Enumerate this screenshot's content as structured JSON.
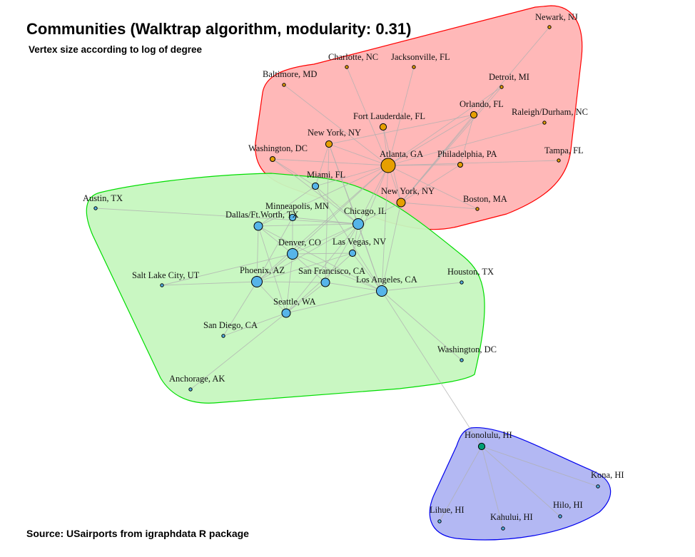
{
  "title": "Communities (Walktrap algorithm, modularity: 0.31)",
  "subtitle": "Vertex size according to log of degree",
  "source": "Source: USairports from igraphdata R package",
  "colors": {
    "community_red_fill": "#ffb8b8",
    "community_red_stroke": "#ff0000",
    "community_green_fill": "#c6f7bf",
    "community_green_stroke": "#00dd00",
    "community_blue_fill": "#b3b8f3",
    "community_blue_stroke": "#0000ee",
    "vertex_orange": "#e69f00",
    "vertex_blue": "#56b4e9",
    "vertex_teal": "#009e73",
    "edge": "#b0b0b0"
  },
  "communities": [
    {
      "name": "red",
      "members": [
        "ATL",
        "NYC2",
        "DCA",
        "BWI",
        "CLT",
        "JAX",
        "EWR",
        "DTW",
        "MCO",
        "RDU",
        "FLL",
        "PHL",
        "TPA",
        "BOS"
      ]
    },
    {
      "name": "green",
      "members": [
        "MIA",
        "AUS",
        "MSP",
        "DFW",
        "ORD",
        "DEN",
        "LAS",
        "SLC",
        "PHX",
        "SFO",
        "LAX",
        "IAH",
        "SEA",
        "SAN",
        "IAD",
        "ANC"
      ]
    },
    {
      "name": "blue",
      "members": [
        "HNL",
        "KOA",
        "LIH",
        "OGG",
        "ITO"
      ]
    }
  ],
  "vertices": [
    {
      "id": "ATL",
      "label": "Atlanta, GA",
      "degree_rank": 5,
      "color": "orange"
    },
    {
      "id": "NYC2",
      "label": "New York, NY",
      "degree_rank": 3,
      "color": "orange"
    },
    {
      "id": "NYC1",
      "label": "New York, NY",
      "degree_rank": 2,
      "color": "orange"
    },
    {
      "id": "DCA",
      "label": "Washington, DC",
      "degree_rank": 1,
      "color": "orange"
    },
    {
      "id": "BWI",
      "label": "Baltimore, MD",
      "degree_rank": 0,
      "color": "orange"
    },
    {
      "id": "CLT",
      "label": "Charlotte, NC",
      "degree_rank": 0,
      "color": "orange"
    },
    {
      "id": "JAX",
      "label": "Jacksonville, FL",
      "degree_rank": 0,
      "color": "orange"
    },
    {
      "id": "EWR",
      "label": "Newark, NJ",
      "degree_rank": 0,
      "color": "orange"
    },
    {
      "id": "DTW",
      "label": "Detroit, MI",
      "degree_rank": 0,
      "color": "orange"
    },
    {
      "id": "MCO",
      "label": "Orlando, FL",
      "degree_rank": 2,
      "color": "orange"
    },
    {
      "id": "RDU",
      "label": "Raleigh/Durham, NC",
      "degree_rank": 0,
      "color": "orange"
    },
    {
      "id": "FLL",
      "label": "Fort Lauderdale, FL",
      "degree_rank": 2,
      "color": "orange"
    },
    {
      "id": "PHL",
      "label": "Philadelphia, PA",
      "degree_rank": 1,
      "color": "orange"
    },
    {
      "id": "TPA",
      "label": "Tampa, FL",
      "degree_rank": 0,
      "color": "orange"
    },
    {
      "id": "BOS",
      "label": "Boston, MA",
      "degree_rank": 0,
      "color": "orange"
    },
    {
      "id": "MIA",
      "label": "Miami, FL",
      "degree_rank": 2,
      "color": "blue"
    },
    {
      "id": "AUS",
      "label": "Austin, TX",
      "degree_rank": 0,
      "color": "blue"
    },
    {
      "id": "MSP",
      "label": "Minneapolis, MN",
      "degree_rank": 2,
      "color": "blue"
    },
    {
      "id": "DFW",
      "label": "Dallas/Ft.Worth, TX",
      "degree_rank": 3,
      "color": "blue"
    },
    {
      "id": "ORD",
      "label": "Chicago, IL",
      "degree_rank": 4,
      "color": "blue"
    },
    {
      "id": "DEN",
      "label": "Denver, CO",
      "degree_rank": 4,
      "color": "blue"
    },
    {
      "id": "LAS",
      "label": "Las Vegas, NV",
      "degree_rank": 2,
      "color": "blue"
    },
    {
      "id": "SLC",
      "label": "Salt Lake City, UT",
      "degree_rank": 0,
      "color": "blue"
    },
    {
      "id": "PHX",
      "label": "Phoenix, AZ",
      "degree_rank": 4,
      "color": "blue"
    },
    {
      "id": "SFO",
      "label": "San Francisco, CA",
      "degree_rank": 3,
      "color": "blue"
    },
    {
      "id": "LAX",
      "label": "Los Angeles, CA",
      "degree_rank": 4,
      "color": "blue"
    },
    {
      "id": "IAH",
      "label": "Houston, TX",
      "degree_rank": 0,
      "color": "blue"
    },
    {
      "id": "SEA",
      "label": "Seattle, WA",
      "degree_rank": 3,
      "color": "blue"
    },
    {
      "id": "SAN",
      "label": "San Diego, CA",
      "degree_rank": 0,
      "color": "blue"
    },
    {
      "id": "IAD",
      "label": "Washington, DC",
      "degree_rank": 0,
      "color": "blue"
    },
    {
      "id": "ANC",
      "label": "Anchorage, AK",
      "degree_rank": 0,
      "color": "blue"
    },
    {
      "id": "HNL",
      "label": "Honolulu, HI",
      "degree_rank": 2,
      "color": "teal"
    },
    {
      "id": "KOA",
      "label": "Kona, HI",
      "degree_rank": 0,
      "color": "blue"
    },
    {
      "id": "LIH",
      "label": "Lihue, HI",
      "degree_rank": 0,
      "color": "blue"
    },
    {
      "id": "OGG",
      "label": "Kahului, HI",
      "degree_rank": 0,
      "color": "blue"
    },
    {
      "id": "ITO",
      "label": "Hilo, HI",
      "degree_rank": 0,
      "color": "blue"
    }
  ],
  "edges": [
    [
      "ATL",
      "BWI"
    ],
    [
      "ATL",
      "CLT"
    ],
    [
      "ATL",
      "JAX"
    ],
    [
      "ATL",
      "DTW"
    ],
    [
      "ATL",
      "MCO"
    ],
    [
      "ATL",
      "RDU"
    ],
    [
      "ATL",
      "FLL"
    ],
    [
      "ATL",
      "PHL"
    ],
    [
      "ATL",
      "TPA"
    ],
    [
      "ATL",
      "BOS"
    ],
    [
      "ATL",
      "NYC2"
    ],
    [
      "ATL",
      "NYC1"
    ],
    [
      "ATL",
      "DCA"
    ],
    [
      "ATL",
      "MIA"
    ],
    [
      "ATL",
      "ORD"
    ],
    [
      "ATL",
      "DFW"
    ],
    [
      "ATL",
      "DEN"
    ],
    [
      "ATL",
      "LAX"
    ],
    [
      "ATL",
      "LAS"
    ],
    [
      "ATL",
      "PHX"
    ],
    [
      "EWR",
      "NYC2"
    ],
    [
      "DTW",
      "NYC2"
    ],
    [
      "MCO",
      "NYC2"
    ],
    [
      "MCO",
      "NYC1"
    ],
    [
      "MCO",
      "PHL"
    ],
    [
      "FLL",
      "NYC2"
    ],
    [
      "PHL",
      "NYC2"
    ],
    [
      "BOS",
      "NYC2"
    ],
    [
      "NYC1",
      "MIA"
    ],
    [
      "NYC1",
      "ORD"
    ],
    [
      "NYC1",
      "LAX"
    ],
    [
      "NYC1",
      "SFO"
    ],
    [
      "NYC2",
      "LAX"
    ],
    [
      "NYC2",
      "ORD"
    ],
    [
      "DCA",
      "MIA"
    ],
    [
      "DCA",
      "ORD"
    ],
    [
      "MIA",
      "ORD"
    ],
    [
      "MIA",
      "DFW"
    ],
    [
      "MIA",
      "LAX"
    ],
    [
      "ORD",
      "DFW"
    ],
    [
      "ORD",
      "DEN"
    ],
    [
      "ORD",
      "LAS"
    ],
    [
      "ORD",
      "LAX"
    ],
    [
      "ORD",
      "SFO"
    ],
    [
      "ORD",
      "PHX"
    ],
    [
      "ORD",
      "SEA"
    ],
    [
      "ORD",
      "MSP"
    ],
    [
      "ORD",
      "AUS"
    ],
    [
      "DFW",
      "DEN"
    ],
    [
      "DFW",
      "PHX"
    ],
    [
      "DFW",
      "LAX"
    ],
    [
      "DFW",
      "SEA"
    ],
    [
      "DEN",
      "LAS"
    ],
    [
      "DEN",
      "PHX"
    ],
    [
      "DEN",
      "SFO"
    ],
    [
      "DEN",
      "LAX"
    ],
    [
      "DEN",
      "SEA"
    ],
    [
      "DEN",
      "SLC"
    ],
    [
      "DEN",
      "MSP"
    ],
    [
      "LAS",
      "LAX"
    ],
    [
      "LAS",
      "SEA"
    ],
    [
      "LAS",
      "PHX"
    ],
    [
      "PHX",
      "SFO"
    ],
    [
      "PHX",
      "SEA"
    ],
    [
      "PHX",
      "SLC"
    ],
    [
      "PHX",
      "SAN"
    ],
    [
      "SFO",
      "LAX"
    ],
    [
      "SFO",
      "SEA"
    ],
    [
      "LAX",
      "IAH"
    ],
    [
      "LAX",
      "SEA"
    ],
    [
      "LAX",
      "IAD"
    ],
    [
      "LAX",
      "HNL"
    ],
    [
      "SEA",
      "SAN"
    ],
    [
      "SEA",
      "ANC"
    ],
    [
      "MSP",
      "PHX"
    ],
    [
      "HNL",
      "KOA"
    ],
    [
      "HNL",
      "LIH"
    ],
    [
      "HNL",
      "OGG"
    ],
    [
      "HNL",
      "ITO"
    ]
  ]
}
